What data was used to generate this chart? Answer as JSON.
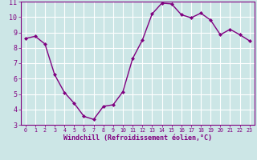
{
  "x": [
    0,
    1,
    2,
    3,
    4,
    5,
    6,
    7,
    8,
    9,
    10,
    11,
    12,
    13,
    14,
    15,
    16,
    17,
    18,
    19,
    20,
    21,
    22,
    23
  ],
  "y": [
    8.6,
    8.75,
    8.25,
    6.25,
    5.1,
    4.4,
    3.55,
    3.35,
    4.2,
    4.3,
    5.15,
    7.3,
    8.5,
    10.2,
    10.9,
    10.85,
    10.15,
    9.95,
    10.25,
    9.8,
    8.85,
    9.2,
    8.85,
    8.45
  ],
  "line_color": "#800080",
  "marker": "D",
  "marker_size": 2,
  "bg_color": "#cce6e6",
  "grid_color": "#ffffff",
  "xlabel": "Windchill (Refroidissement éolien,°C)",
  "xlabel_color": "#800080",
  "tick_color": "#800080",
  "ylim": [
    3,
    11
  ],
  "xlim_min": -0.5,
  "xlim_max": 23.5,
  "yticks": [
    3,
    4,
    5,
    6,
    7,
    8,
    9,
    10,
    11
  ],
  "xticks": [
    0,
    1,
    2,
    3,
    4,
    5,
    6,
    7,
    8,
    9,
    10,
    11,
    12,
    13,
    14,
    15,
    16,
    17,
    18,
    19,
    20,
    21,
    22,
    23
  ],
  "spine_color": "#800080",
  "line_width": 1.0,
  "xlabel_fontsize": 6.0,
  "xtick_fontsize": 4.8,
  "ytick_fontsize": 6.0
}
